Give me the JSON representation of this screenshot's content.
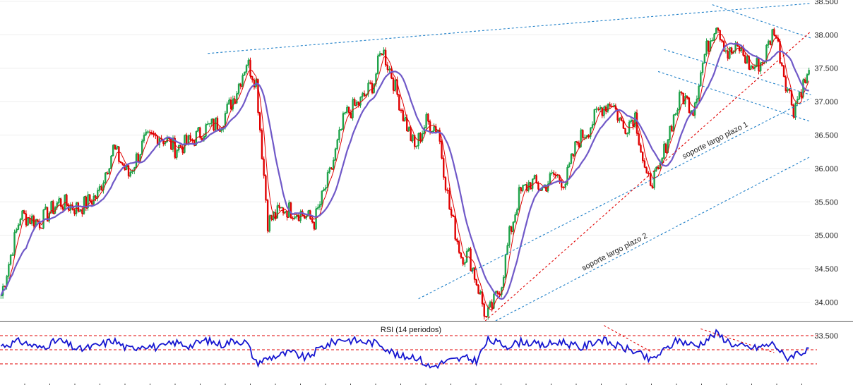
{
  "colors": {
    "bull": "#1fa34a",
    "bear": "#e00000",
    "ma_fast": "#e00000",
    "ma_slow": "#7059c8",
    "channel": "#1e7fc8",
    "support_red": "#e00000",
    "rsi": "#1515d0",
    "rsi_levels": "#e00000",
    "grid": "#eeeeee"
  },
  "chart_data": [
    {
      "type": "candlestick",
      "title": "",
      "ylim": [
        33.72,
        38.52
      ],
      "y_ticks": [
        "38.500",
        "38.000",
        "37.500",
        "37.000",
        "36.500",
        "36.000",
        "35.500",
        "35.000",
        "34.500",
        "34.000",
        "33.500"
      ],
      "y_tick_values": [
        38.5,
        38.0,
        37.5,
        37.0,
        36.5,
        36.0,
        35.5,
        35.0,
        34.5,
        34.0,
        33.5
      ],
      "close_anchors": [
        [
          0,
          34.1
        ],
        [
          10,
          35.3
        ],
        [
          20,
          35.2
        ],
        [
          30,
          35.5
        ],
        [
          40,
          35.4
        ],
        [
          50,
          35.6
        ],
        [
          58,
          36.3
        ],
        [
          66,
          35.9
        ],
        [
          74,
          36.4
        ],
        [
          82,
          36.5
        ],
        [
          90,
          36.3
        ],
        [
          98,
          36.4
        ],
        [
          106,
          36.6
        ],
        [
          114,
          36.7
        ],
        [
          121,
          37.1
        ],
        [
          127,
          37.6
        ],
        [
          132,
          37.3
        ],
        [
          138,
          35.2
        ],
        [
          146,
          35.4
        ],
        [
          154,
          35.35
        ],
        [
          162,
          35.2
        ],
        [
          170,
          35.9
        ],
        [
          178,
          36.8
        ],
        [
          186,
          37.0
        ],
        [
          193,
          37.3
        ],
        [
          197,
          37.8
        ],
        [
          202,
          37.4
        ],
        [
          208,
          36.8
        ],
        [
          214,
          36.3
        ],
        [
          220,
          36.7
        ],
        [
          226,
          36.6
        ],
        [
          232,
          35.4
        ],
        [
          238,
          34.7
        ],
        [
          242,
          34.7
        ],
        [
          247,
          34.2
        ],
        [
          251,
          33.75
        ],
        [
          255,
          34.0
        ],
        [
          259,
          34.3
        ],
        [
          263,
          35.0
        ],
        [
          268,
          35.6
        ],
        [
          274,
          35.8
        ],
        [
          280,
          35.7
        ],
        [
          286,
          35.9
        ],
        [
          292,
          35.8
        ],
        [
          298,
          36.4
        ],
        [
          304,
          36.6
        ],
        [
          310,
          36.9
        ],
        [
          316,
          37.0
        ],
        [
          322,
          36.6
        ],
        [
          328,
          36.8
        ],
        [
          334,
          35.8
        ],
        [
          340,
          35.9
        ],
        [
          346,
          36.6
        ],
        [
          352,
          37.1
        ],
        [
          358,
          36.9
        ],
        [
          364,
          37.7
        ],
        [
          370,
          38.2
        ],
        [
          376,
          37.7
        ],
        [
          382,
          37.8
        ],
        [
          388,
          37.5
        ],
        [
          394,
          37.6
        ],
        [
          400,
          38.1
        ],
        [
          406,
          37.3
        ],
        [
          410,
          36.9
        ],
        [
          414,
          37.2
        ],
        [
          418,
          37.4
        ]
      ],
      "n": 419,
      "series": [
        {
          "name": "",
          "type": "ohlc-step",
          "values_source": "close_anchors"
        },
        {
          "name": "",
          "type": "sma",
          "period": 5
        },
        {
          "name": "",
          "type": "sma",
          "period": 14
        }
      ],
      "trendlines": [
        {
          "label": "",
          "color": "channel",
          "points": [
            [
              107,
              37.72
            ],
            [
              419,
              38.47
            ]
          ]
        },
        {
          "label": "",
          "color": "channel",
          "points": [
            [
              368,
              38.45
            ],
            [
              419,
              37.95
            ]
          ]
        },
        {
          "label": "",
          "color": "channel",
          "points": [
            [
              343,
              37.78
            ],
            [
              419,
              37.1
            ]
          ]
        },
        {
          "label": "",
          "color": "channel",
          "points": [
            [
              340,
              37.45
            ],
            [
              419,
              36.7
            ]
          ]
        },
        {
          "label": "soporte largo plazo 1",
          "color": "channel",
          "points": [
            [
              216,
              34.05
            ],
            [
              419,
              37.05
            ]
          ]
        },
        {
          "label": "",
          "color": "support_red",
          "points": [
            [
              242,
              33.5
            ],
            [
              419,
              38.05
            ]
          ]
        },
        {
          "label": "soporte largo plazo 2",
          "color": "channel",
          "points": [
            [
              240,
              33.48
            ],
            [
              419,
              36.18
            ]
          ]
        }
      ]
    },
    {
      "type": "line",
      "title": "RSI (14 periodos)",
      "ylim": [
        0,
        100
      ],
      "levels": [
        {
          "y": 80,
          "color": "rsi_levels"
        },
        {
          "y": 55,
          "color": "rsi_levels"
        },
        {
          "y": 30,
          "color": "rsi_levels"
        }
      ],
      "x_ticks": 33,
      "rsi_anchors": [
        [
          0,
          62
        ],
        [
          10,
          70
        ],
        [
          20,
          58
        ],
        [
          30,
          72
        ],
        [
          40,
          55
        ],
        [
          50,
          62
        ],
        [
          58,
          72
        ],
        [
          66,
          56
        ],
        [
          74,
          64
        ],
        [
          82,
          58
        ],
        [
          90,
          68
        ],
        [
          98,
          62
        ],
        [
          106,
          72
        ],
        [
          114,
          64
        ],
        [
          121,
          72
        ],
        [
          127,
          68
        ],
        [
          132,
          32
        ],
        [
          140,
          42
        ],
        [
          150,
          50
        ],
        [
          158,
          40
        ],
        [
          166,
          60
        ],
        [
          176,
          74
        ],
        [
          186,
          70
        ],
        [
          196,
          66
        ],
        [
          206,
          42
        ],
        [
          214,
          44
        ],
        [
          222,
          24
        ],
        [
          230,
          34
        ],
        [
          240,
          40
        ],
        [
          246,
          36
        ],
        [
          252,
          72
        ],
        [
          262,
          62
        ],
        [
          270,
          70
        ],
        [
          280,
          62
        ],
        [
          290,
          70
        ],
        [
          300,
          58
        ],
        [
          310,
          74
        ],
        [
          320,
          60
        ],
        [
          328,
          52
        ],
        [
          336,
          36
        ],
        [
          344,
          56
        ],
        [
          350,
          72
        ],
        [
          360,
          62
        ],
        [
          370,
          84
        ],
        [
          380,
          62
        ],
        [
          390,
          58
        ],
        [
          400,
          66
        ],
        [
          406,
          40
        ],
        [
          412,
          50
        ],
        [
          418,
          52
        ]
      ],
      "trendlines": [
        {
          "color": "rsi_levels",
          "points": [
            [
              312,
              98
            ],
            [
              336,
              52
            ]
          ]
        },
        {
          "color": "rsi_levels",
          "points": [
            [
              362,
              92
            ],
            [
              400,
              50
            ]
          ]
        }
      ]
    }
  ]
}
